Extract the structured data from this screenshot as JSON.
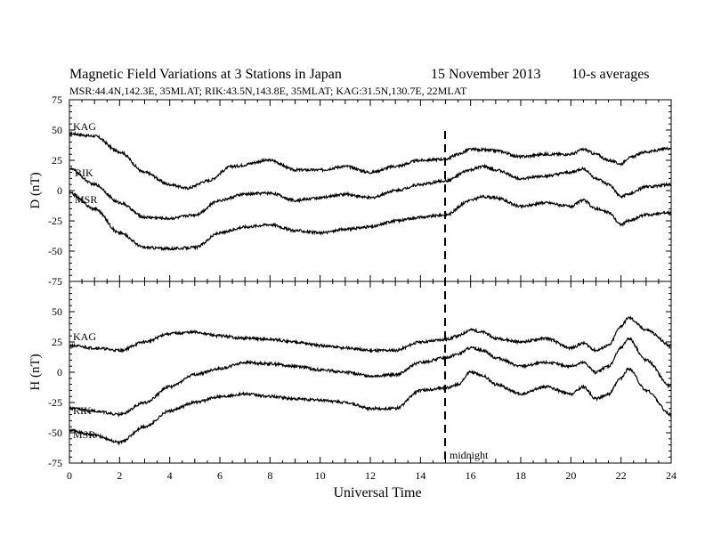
{
  "header": {
    "title": "Magnetic Field Variations at 3 Stations in Japan",
    "date": "15 November 2013",
    "averaging": "10-s averages",
    "stations_line": "MSR:44.4N,142.3E, 35MLAT;  RIK:43.5N,143.8E, 35MLAT;  KAG:31.5N,130.7E, 22MLAT"
  },
  "chart_data": [
    {
      "type": "line",
      "ylabel": "D (nT)",
      "ylim": [
        -75,
        75
      ],
      "yticks": [
        75,
        50,
        25,
        0,
        -25,
        -50,
        -75
      ],
      "xlim": [
        0,
        24
      ],
      "series": [
        {
          "name": "KAG",
          "x": [
            0,
            1,
            2,
            3,
            4,
            4.7,
            5.5,
            6.5,
            8,
            9,
            10,
            11,
            12,
            13,
            14,
            15,
            15.5,
            16,
            17,
            18,
            19,
            20,
            20.5,
            21,
            21.5,
            22,
            22.3,
            23,
            24
          ],
          "y": [
            47,
            45,
            32,
            15,
            5,
            2,
            8,
            20,
            25,
            17,
            17,
            20,
            15,
            20,
            25,
            26,
            30,
            34,
            33,
            28,
            30,
            30,
            34,
            30,
            25,
            22,
            27,
            32,
            35
          ]
        },
        {
          "name": "RIK",
          "x": [
            0,
            1,
            2,
            3,
            4,
            5,
            6,
            7,
            8,
            9,
            10,
            11,
            12,
            13,
            14,
            15,
            16,
            16.5,
            17,
            18,
            19,
            20,
            20.5,
            21,
            21.5,
            22,
            22.3,
            23,
            24
          ],
          "y": [
            18,
            5,
            -10,
            -22,
            -23,
            -20,
            -8,
            -3,
            -2,
            -8,
            -6,
            -3,
            -6,
            0,
            5,
            8,
            17,
            20,
            17,
            10,
            12,
            15,
            18,
            10,
            5,
            -5,
            -3,
            3,
            5
          ]
        },
        {
          "name": "MSR",
          "x": [
            0,
            1,
            2,
            3,
            4,
            5,
            6,
            7,
            8,
            9,
            10,
            11,
            12,
            13,
            14,
            15,
            16,
            16.5,
            17,
            18,
            19,
            20,
            20.5,
            21,
            21.5,
            22,
            22.3,
            23,
            24
          ],
          "y": [
            -2,
            -15,
            -35,
            -47,
            -48,
            -47,
            -35,
            -30,
            -28,
            -33,
            -35,
            -32,
            -30,
            -25,
            -22,
            -20,
            -8,
            -5,
            -6,
            -13,
            -10,
            -13,
            -8,
            -15,
            -18,
            -28,
            -25,
            -20,
            -18
          ]
        }
      ]
    },
    {
      "type": "line",
      "ylabel": "H (nT)",
      "xlabel": "Universal Time",
      "ylim": [
        -75,
        75
      ],
      "yticks": [
        50,
        25,
        0,
        -25,
        -50,
        -75
      ],
      "xlim": [
        0,
        24
      ],
      "xticks": [
        0,
        2,
        4,
        6,
        8,
        10,
        12,
        14,
        16,
        18,
        20,
        22,
        24
      ],
      "series": [
        {
          "name": "KAG",
          "x": [
            0,
            1,
            2,
            3,
            4,
            5,
            6,
            7,
            8,
            9,
            10,
            11,
            12,
            13,
            14,
            15,
            15.5,
            16,
            16.5,
            17,
            18,
            19,
            20,
            20.5,
            21,
            21.5,
            22,
            22.3,
            23,
            24
          ],
          "y": [
            22,
            20,
            18,
            25,
            32,
            33,
            30,
            28,
            27,
            25,
            22,
            20,
            18,
            18,
            25,
            27,
            30,
            35,
            33,
            28,
            25,
            28,
            20,
            24,
            18,
            22,
            38,
            45,
            35,
            22
          ]
        },
        {
          "name": "RIK",
          "x": [
            0,
            1,
            2,
            3,
            4,
            5,
            6,
            7,
            8,
            9,
            10,
            11,
            12,
            13,
            14,
            15,
            15.5,
            16,
            16.5,
            17,
            18,
            19,
            20,
            20.5,
            21,
            21.5,
            22,
            22.3,
            23,
            24
          ],
          "y": [
            -30,
            -32,
            -35,
            -25,
            -12,
            -2,
            3,
            8,
            7,
            5,
            2,
            0,
            -3,
            -2,
            8,
            12,
            15,
            20,
            18,
            12,
            5,
            8,
            5,
            8,
            0,
            5,
            20,
            28,
            10,
            -12
          ]
        },
        {
          "name": "MSR",
          "x": [
            0,
            1,
            2,
            3,
            4,
            5,
            6,
            7,
            8,
            9,
            10,
            11,
            12,
            13,
            14,
            15,
            15.5,
            16,
            16.5,
            17,
            18,
            19,
            20,
            20.5,
            21,
            21.5,
            22,
            22.3,
            23,
            24
          ],
          "y": [
            -48,
            -52,
            -58,
            -45,
            -32,
            -25,
            -20,
            -18,
            -20,
            -22,
            -23,
            -25,
            -30,
            -30,
            -15,
            -13,
            -10,
            0,
            -3,
            -10,
            -18,
            -12,
            -18,
            -12,
            -22,
            -18,
            -5,
            3,
            -15,
            -35
          ]
        }
      ],
      "annotation": {
        "label": "midnight",
        "x": 15
      }
    }
  ]
}
